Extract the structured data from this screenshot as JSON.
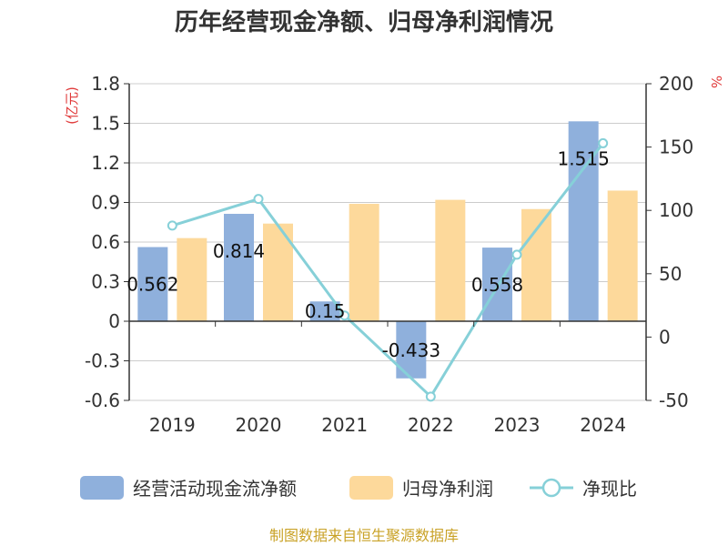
{
  "chart_data": {
    "type": "bar",
    "title": "历年经营现金净额、归母净利润情况",
    "categories": [
      "2019",
      "2020",
      "2021",
      "2022",
      "2023",
      "2024"
    ],
    "series": [
      {
        "name": "经营活动现金流净额",
        "kind": "bar",
        "axis": "left",
        "color": "#8fb0dc",
        "values": [
          0.562,
          0.814,
          0.15,
          -0.433,
          0.558,
          1.515
        ],
        "labels": [
          "0.562",
          "0.814",
          "0.15",
          "-0.433",
          "0.558",
          "1.515"
        ]
      },
      {
        "name": "归母净利润",
        "kind": "bar",
        "axis": "left",
        "color": "#fdd99b",
        "values": [
          0.63,
          0.74,
          0.89,
          0.92,
          0.85,
          0.99
        ]
      },
      {
        "name": "净现比",
        "kind": "line",
        "axis": "right",
        "color": "#86d0d8",
        "values": [
          88,
          109,
          17,
          -47,
          65,
          153
        ]
      }
    ],
    "left_axis": {
      "unit": "(亿元)",
      "min": -0.6,
      "max": 1.8,
      "ticks": [
        -0.6,
        -0.3,
        0,
        0.3,
        0.6,
        0.9,
        1.2,
        1.5,
        1.8
      ],
      "tick_labels": [
        "-0.6",
        "-0.3",
        "0",
        "0.3",
        "0.6",
        "0.9",
        "1.2",
        "1.5",
        "1.8"
      ]
    },
    "right_axis": {
      "unit": "%",
      "min": -50,
      "max": 200,
      "ticks": [
        -50,
        0,
        50,
        100,
        150,
        200
      ],
      "tick_labels": [
        "-50",
        "0",
        "50",
        "100",
        "150",
        "200"
      ]
    },
    "grid": true,
    "legend_position": "bottom",
    "source": "制图数据来自恒生聚源数据库"
  }
}
